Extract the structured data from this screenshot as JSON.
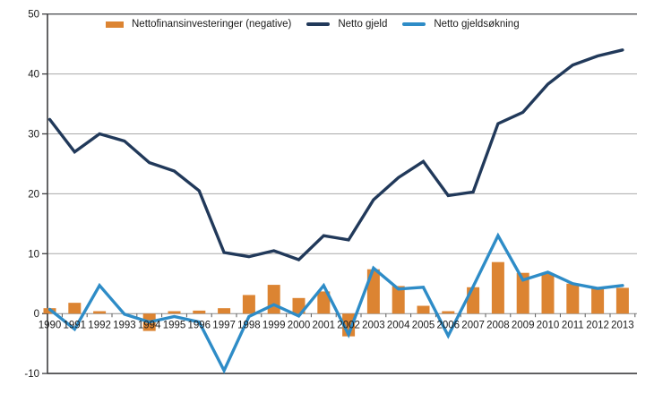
{
  "chart_data": {
    "type": "bar+line",
    "title": "",
    "categories": [
      "1990",
      "1991",
      "1992",
      "1993",
      "1994",
      "1995",
      "1996",
      "1997",
      "1998",
      "1999",
      "2000",
      "2001",
      "2002",
      "2003",
      "2004",
      "2005",
      "2006",
      "2007",
      "2008",
      "2009",
      "2010",
      "2011",
      "2012",
      "2013"
    ],
    "series": [
      {
        "name": "Nettofinansinvesteringer (negative)",
        "type": "bar",
        "color": "#DC8432",
        "values": [
          0.9,
          1.8,
          0.4,
          0,
          -2.9,
          0.4,
          0.5,
          0.9,
          3.1,
          4.8,
          2.6,
          3.7,
          -3.8,
          7.4,
          4.6,
          1.3,
          0.4,
          4.4,
          8.6,
          6.8,
          6.7,
          5.0,
          4.3,
          4.3
        ]
      },
      {
        "name": "Netto gjeld",
        "type": "line",
        "color": "#21395A",
        "values": [
          32.4,
          27.0,
          30.0,
          28.8,
          25.2,
          23.8,
          20.5,
          10.2,
          9.5,
          10.5,
          9.0,
          13.0,
          12.3,
          19.0,
          22.7,
          25.4,
          19.7,
          20.3,
          31.7,
          33.6,
          38.3,
          41.5,
          43.0,
          44.0
        ]
      },
      {
        "name": "Netto gjeldsøkning",
        "type": "line",
        "color": "#2E8CC7",
        "values": [
          0.7,
          -2.6,
          4.7,
          -0.1,
          -1.4,
          -0.5,
          -1.4,
          -9.5,
          -0.5,
          1.5,
          -0.4,
          4.7,
          -3.5,
          7.6,
          4.1,
          4.4,
          -3.7,
          4.5,
          13.0,
          5.6,
          6.9,
          5.0,
          4.2,
          4.7
        ]
      }
    ],
    "xlabel": "",
    "ylabel": "",
    "ylim": [
      -10,
      50
    ],
    "yticks": [
      50,
      40,
      30,
      20,
      10,
      0,
      -10
    ],
    "grid": true,
    "legend_position": "top-inside"
  },
  "colors": {
    "background": "#FFFFFF",
    "gridline_light": "#A9A9A9",
    "gridline_top": "#55565A",
    "zero_line": "#8C8C8C",
    "axis": "#3E3E40",
    "tick": "#595959",
    "text": "#1A1A1A"
  }
}
